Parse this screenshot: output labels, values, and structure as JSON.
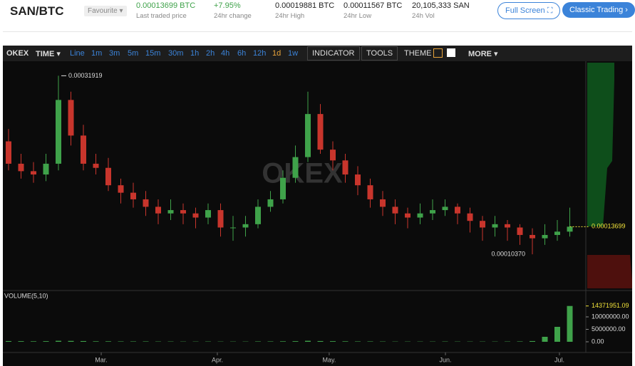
{
  "header": {
    "pair": "SAN/BTC",
    "favourite": "Favourite",
    "stats": [
      {
        "value": "0.00013699 BTC",
        "label": "Last traded price"
      },
      {
        "value": "+7.95%",
        "label": "24hr change"
      },
      {
        "value": "0.00019881 BTC",
        "label": "24hr High"
      },
      {
        "value": "0.00011567 BTC",
        "label": "24hr Low"
      },
      {
        "value": "20,105,333 SAN",
        "label": "24h Vol"
      }
    ],
    "buttons": [
      "Full Screen",
      "Classic Trading"
    ]
  },
  "toolbar": {
    "brand": "OKEX",
    "time": "TIME",
    "intervals": [
      "Line",
      "1m",
      "3m",
      "5m",
      "15m",
      "30m",
      "1h",
      "2h",
      "4h",
      "6h",
      "12h",
      "1d",
      "1w"
    ],
    "indicator": "INDICATOR",
    "tools": "TOOLS",
    "theme": "THEME",
    "more": "MORE"
  },
  "chart_data": {
    "type": "candlestick",
    "watermark": "OKEX",
    "categories": [
      null,
      null,
      null,
      null,
      null,
      null,
      null,
      null,
      null,
      null,
      null,
      null,
      null,
      null,
      null,
      null,
      null,
      null,
      null,
      null,
      null,
      null,
      null,
      null,
      null,
      null,
      null,
      null,
      null,
      null,
      null,
      null,
      null,
      null,
      null,
      null,
      null,
      null,
      null,
      null,
      null,
      null,
      null,
      null,
      null,
      null
    ],
    "open": [
      0.00024,
      0.000213,
      0.000204,
      0.0002,
      0.000213,
      0.00029,
      0.000247,
      0.000213,
      0.000208,
      0.000187,
      0.000178,
      0.00017,
      0.000161,
      0.000153,
      0.000157,
      0.000153,
      0.000148,
      0.000157,
      0.000136,
      0.000136,
      0.00014,
      0.000161,
      0.00017,
      0.000196,
      0.000221,
      0.000273,
      0.00023,
      0.000217,
      0.0002,
      0.000187,
      0.00017,
      0.000161,
      0.000153,
      0.000148,
      0.000153,
      0.000157,
      0.000161,
      0.000153,
      0.000144,
      0.000136,
      0.00014,
      0.000136,
      0.000127,
      0.000123,
      0.000127,
      0.000131
    ],
    "high": [
      0.000255,
      0.000225,
      0.000215,
      0.000225,
      0.00031919,
      0.0003,
      0.00026,
      0.000225,
      0.00022,
      0.000195,
      0.00019,
      0.00018,
      0.00017,
      0.00017,
      0.000165,
      0.00016,
      0.000165,
      0.000165,
      0.00015,
      0.00015,
      0.00017,
      0.00018,
      0.000205,
      0.000235,
      0.0003,
      0.000285,
      0.00024,
      0.000225,
      0.00021,
      0.000195,
      0.00018,
      0.00017,
      0.00016,
      0.000165,
      0.00017,
      0.00017,
      0.000165,
      0.00016,
      0.00015,
      0.00015,
      0.000145,
      0.00014,
      0.000135,
      0.00014,
      0.000145,
      0.00016
    ],
    "low": [
      0.000205,
      0.000195,
      0.00019,
      0.000192,
      0.000205,
      0.000235,
      0.000205,
      0.0002,
      0.00018,
      0.000165,
      0.00016,
      0.00015,
      0.00014,
      0.000145,
      0.00014,
      0.000135,
      0.00014,
      0.000125,
      0.00012,
      0.000125,
      0.000135,
      0.000155,
      0.000165,
      0.00019,
      0.000215,
      0.000225,
      0.000205,
      0.00019,
      0.000175,
      0.00016,
      0.00015,
      0.00014,
      0.000135,
      0.00014,
      0.000145,
      0.00015,
      0.00014,
      0.00013,
      0.00012,
      0.000125,
      0.00012,
      0.000115,
      0.0001037,
      0.000115,
      0.00012,
      0.000125
    ],
    "close": [
      0.000213,
      0.000204,
      0.0002,
      0.000213,
      0.00029,
      0.000247,
      0.000213,
      0.000208,
      0.000187,
      0.000178,
      0.00017,
      0.000161,
      0.000153,
      0.000157,
      0.000153,
      0.000148,
      0.000157,
      0.000136,
      0.000136,
      0.00014,
      0.000161,
      0.00017,
      0.000196,
      0.000221,
      0.000273,
      0.00023,
      0.000217,
      0.0002,
      0.000187,
      0.00017,
      0.000161,
      0.000153,
      0.000148,
      0.000153,
      0.000157,
      0.000161,
      0.000153,
      0.000144,
      0.000136,
      0.00014,
      0.000136,
      0.000127,
      0.000123,
      0.000127,
      0.000131,
      0.00013699
    ],
    "price_labels": {
      "high": "0.00031919",
      "low": "0.00010370",
      "last": "0.00013699"
    },
    "up_color": "#3fa24a",
    "down_color": "#c8352c",
    "ylim": [
      6.25e-05,
      0.000335
    ],
    "xticks": [
      {
        "value": 7.43,
        "label": "Mar."
      },
      {
        "value": 16.74,
        "label": "Apr."
      },
      {
        "value": 25.71,
        "label": "May."
      },
      {
        "value": 35.03,
        "label": "Jun."
      },
      {
        "value": 44.17,
        "label": "Jul."
      }
    ],
    "volume": {
      "title": "VOLUME(5,10)",
      "color": "#3fa24a",
      "values": [
        300000,
        250000,
        200000,
        250000,
        400000,
        350000,
        300000,
        200000,
        200000,
        150000,
        150000,
        150000,
        120000,
        120000,
        100000,
        100000,
        120000,
        100000,
        100000,
        100000,
        150000,
        150000,
        200000,
        250000,
        400000,
        300000,
        250000,
        200000,
        150000,
        150000,
        120000,
        100000,
        100000,
        100000,
        100000,
        120000,
        100000,
        100000,
        100000,
        100000,
        120000,
        150000,
        300000,
        2000000,
        6000000,
        14371951.09
      ],
      "ylim": [
        0,
        20000000
      ],
      "yticks": [
        {
          "value": 14371951.09,
          "label": "14371951.09"
        },
        {
          "value": 10000000,
          "label": "10000000.00"
        },
        {
          "value": 5000000,
          "label": "5000000.00"
        },
        {
          "value": 0,
          "label": "0.00"
        }
      ]
    }
  }
}
